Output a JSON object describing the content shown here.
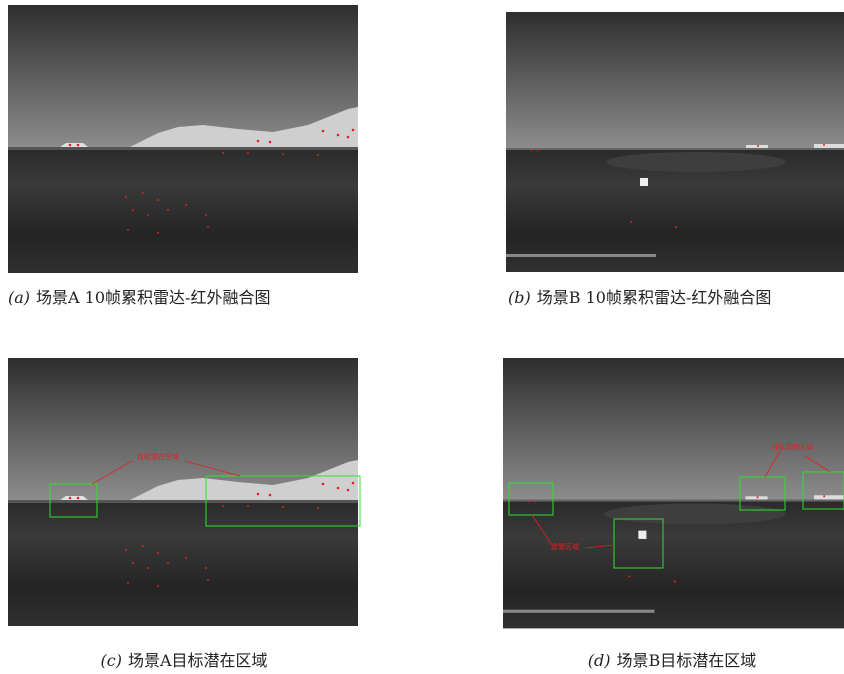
{
  "panels": [
    {
      "label": "(a)",
      "caption": "场景A 10帧累积雷达-红外融合图"
    },
    {
      "label": "(b)",
      "caption": "场景B 10帧累积雷达-红外融合图"
    },
    {
      "label": "(c)",
      "caption": "场景A目标潜在区域",
      "annotations": [
        "目标潜在区域"
      ]
    },
    {
      "label": "(d)",
      "caption": "场景B目标潜在区域",
      "annotations": [
        "目标潜在区域",
        "虚警区域"
      ]
    }
  ]
}
